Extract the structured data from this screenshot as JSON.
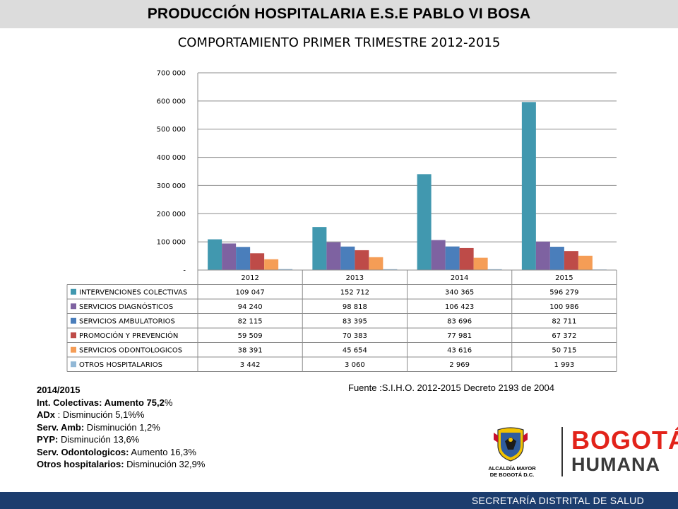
{
  "header": {
    "title": "PRODUCCIÓN HOSPITALARIA E.S.E PABLO VI BOSA"
  },
  "chart_data": {
    "type": "bar",
    "title": "COMPORTAMIENTO PRIMER TRIMESTRE 2012-2015",
    "categories": [
      "2012",
      "2013",
      "2014",
      "2015"
    ],
    "ylim": [
      0,
      700000
    ],
    "yticks": [
      0,
      100000,
      200000,
      300000,
      400000,
      500000,
      600000,
      700000
    ],
    "ytick_labels": [
      "-",
      "100 000",
      "200 000",
      "300 000",
      "400 000",
      "500 000",
      "600 000",
      "700 000"
    ],
    "grid": true,
    "legend": "data-table",
    "series": [
      {
        "name": "INTERVENCIONES COLECTIVAS",
        "color": "#4198af",
        "values": [
          109047,
          152712,
          340365,
          596279
        ],
        "labels": [
          "109 047",
          "152 712",
          "340 365",
          "596 279"
        ]
      },
      {
        "name": "SERVICIOS DIAGNÓSTICOS",
        "color": "#7e62a1",
        "values": [
          94240,
          98818,
          106423,
          100986
        ],
        "labels": [
          "94 240",
          "98 818",
          "106 423",
          "100 986"
        ]
      },
      {
        "name": "SERVICIOS AMBULATORIOS",
        "color": "#4a7ebb",
        "values": [
          82115,
          83395,
          83696,
          82711
        ],
        "labels": [
          "82 115",
          "83 395",
          "83 696",
          "82 711"
        ]
      },
      {
        "name": "PROMOCIÓN Y PREVENCIÓN",
        "color": "#be4b48",
        "values": [
          59509,
          70383,
          77981,
          67372
        ],
        "labels": [
          "59 509",
          "70 383",
          "77 981",
          "67 372"
        ]
      },
      {
        "name": "SERVICIOS ODONTOLOGICOS",
        "color": "#f59d56",
        "values": [
          38391,
          45654,
          43616,
          50715
        ],
        "labels": [
          "38 391",
          "45 654",
          "43 616",
          "50 715"
        ]
      },
      {
        "name": "OTROS HOSPITALARIOS",
        "color": "#92b8d6",
        "values": [
          3442,
          3060,
          2969,
          1993
        ],
        "labels": [
          "3 442",
          "3 060",
          "2 969",
          "1 993"
        ]
      }
    ]
  },
  "source": "Fuente :S.I.H.O. 2012-2015  Decreto 2193 de 2004",
  "notes": {
    "heading": "2014/2015",
    "items": [
      {
        "label": "Int. Colectivas: Aumento 75,2",
        "value": "%"
      },
      {
        "label": "ADx",
        "value": " : Disminución 5,1%%"
      },
      {
        "label": "Serv. Amb:",
        "value": " Disminución 1,2%"
      },
      {
        "label": "PYP:",
        "value": " Disminución 13,6%"
      },
      {
        "label": "Serv. Odontologicos:",
        "value": " Aumento 16,3%"
      },
      {
        "label": "Otros hospitalarios:",
        "value": " Disminución 32,9%"
      }
    ]
  },
  "logo": {
    "escudo_line1": "ALCALDÍA MAYOR",
    "escudo_line2": "DE BOGOTÁ D.C.",
    "bogota": "BOGOTÁ",
    "humana": "HUMANA"
  },
  "footer": {
    "text": "SECRETARÍA DISTRITAL DE SALUD"
  }
}
